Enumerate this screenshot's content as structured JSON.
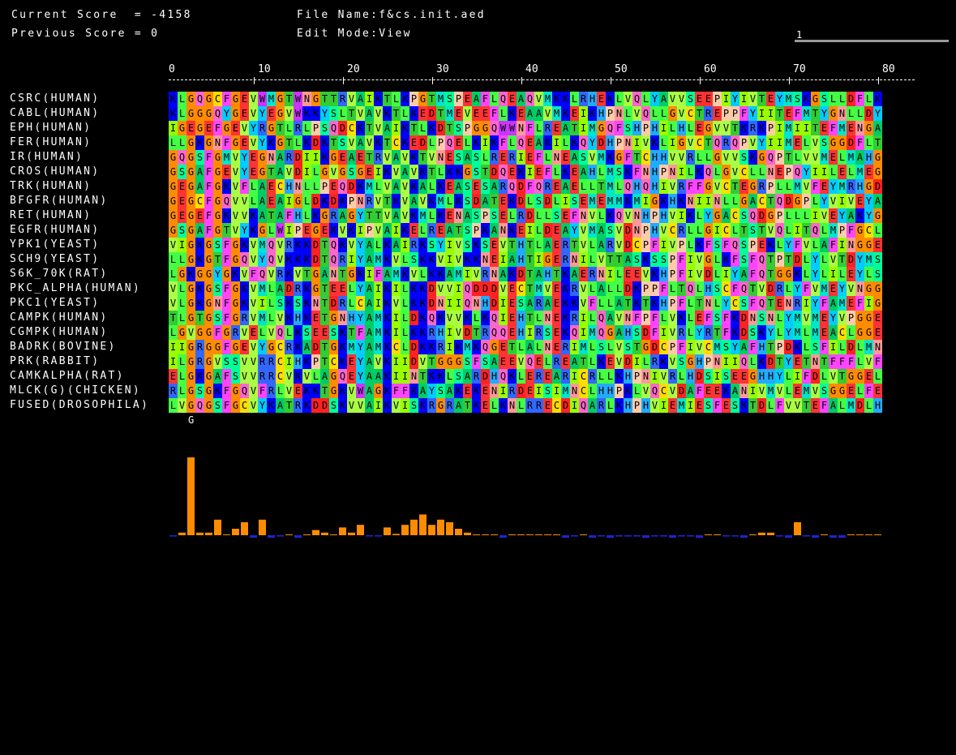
{
  "header": {
    "current_score_text": "Current Score  = -4158",
    "previous_score_text": "Previous Score = 0",
    "file_name_text": "File Name:f&cs.init.aed",
    "edit_mode_text": "Edit Mode:View",
    "position_indicator": "1"
  },
  "ruler": {
    "ticks": [
      "0",
      "10",
      "20",
      "30",
      "40",
      "50",
      "60",
      "70",
      "80"
    ]
  },
  "sequences": [
    {
      "name": "CSRC(HUMAN)",
      "seq": "KLGQGCFGEVWMGTWNGTTRVAIKTLKPGTMSPEAFLQEAQVMKKLRHEKLVQLYAVVSEEPIYIVTEYMSKGSLLDFLK"
    },
    {
      "name": "CABL(HUMAN)",
      "seq": "KLGGGQYGEVYEGVWKKYSLTVAVKTLKEDTMEVEEFLKEAAVMKEIKHPNLVQLLGVCTREPPFYIITEFMTYGNLLDY"
    },
    {
      "name": "EPH(HUMAN)",
      "seq": "IGEGEFGEVYRGTLRLPSQDCKTVAIKTLKDTSPGGQWWNFLREATIMGQFSHPHILHLEGVVTKRKPIMIITEFMENGA"
    },
    {
      "name": "FER(HUMAN)",
      "seq": "LLGKGNFGEVYKGTLKDKTSVAVKTCKEDLPQELKIKFLQEAKILKQYDHPNIVKLIGVCTQRQPVYIIMELVSGGDFLT"
    },
    {
      "name": "IR(HUMAN)",
      "seq": "GQGSFGMVYEGNARDIIKGEAETRVAVKTVNESASLRERIEFLNEASVMKGFTCHHVVRLLGVVSKGQPTLVVMELMAHG"
    },
    {
      "name": "CROS(HUMAN)",
      "seq": "GSGAFGEVYEGTAVDILGVGSGEIKVAVKTLKKGSTDQEKIEFLKEAHLMSKFNHPNILKQLGVCLLNEPQYIILELMEG"
    },
    {
      "name": "TRK(HUMAN)",
      "seq": "GEGAFGKVFLAECHNLLPEQDKMLVAVKALKEASESARQDFQREAELLTMLQHQHIVRFFGVCTEGRPLLMVFEYMRHGD"
    },
    {
      "name": "BFGFR(HUMAN)",
      "seq": "GEGCFGQVVLAEAIGLDKDKPNRVTKVAVKMLKSDATEKDLSDLISEMEMMKMIGKHKNIINLLGACTQDGPLYVIVEYA"
    },
    {
      "name": "RET(HUMAN)",
      "seq": "GEGEFGKVVKATAFHLKGRAGYTTVAVKMLKENASPSELRDLLSEFNVLKQVNHPHVIKLYGACSQDGPLLLIVEYAKYG"
    },
    {
      "name": "EGFR(HUMAN)",
      "seq": "GSGAFGTVYKGLWIPEGEKVKIPVAIKELREATSPKANKEILDEAYVMASVDNPHVCRLLGICLTSTVQLITQLMPFGCL"
    },
    {
      "name": "YPK1(YEAST)",
      "seq": "VIGKGSFGKVMQVRKKDTQKVYALKAIRKSYIVSKSEVTHTLAERTVLARVDCPFIVPLKFSFQSPEKLYFVLAFINGGE"
    },
    {
      "name": "SCH9(YEAST)",
      "seq": "LLGKGTFGQVYQVKKKDTQRIYAMKVLSKKVIVKKNEIAHTIGERNILVTTASKSSPFIVGLKFSFQTPTDLYLVTDYMS"
    },
    {
      "name": "S6K_70K(RAT)",
      "seq": "LGKGGYGKVFQVRKVTGANTGKIFAMKVLKKAMIVRNAKDTAHTKAERNILEEVKHPFIVDLIYAFQTGGKLYLILEYLS"
    },
    {
      "name": "PKC_ALPHA(HUMAN)",
      "seq": "VLGKGSFGKVMLADRKGTEELYAIKILKKDVVIQDDDVECTMVEKRVLALLDKPPFLTQLHSCFQTVDRLYFVMEYVNGG"
    },
    {
      "name": "PKC1(YEAST)",
      "seq": "VLGKGNFGKVILSKSKNTDRLCAIKVLKKDNIIQNHDIESARAEKKVFLLATKTKHPFLTNLYCSFQTENRIYFAMEFIG"
    },
    {
      "name": "CAMPK(HUMAN)",
      "seq": "TLGTGSFGRVMLVKHKETGNHYAMKILDKQKVVKLKQIEHTLNEKRILQAVNFPFLVKLEFSFKDNSNLYMVMEYVPGGE"
    },
    {
      "name": "CGMPK(HUMAN)",
      "seq": "LGVGGFGRVELVQLKSEESKTFAMKILKKRHIVDTRQQEHIRSEKQIMQGAHSDFIVRLYRTFKDSKYLYMLMEACLGGE"
    },
    {
      "name": "BADRK(BOVINE)",
      "seq": "IIGRGGFGEVYGCRKADTGKMYAMKCLDKKRIKMKQGETLALNERIMLSLVSTGDCPFIVCMSYAFHTPDKLSFILDLMN"
    },
    {
      "name": "PRK(RABBIT)",
      "seq": "ILGRGVSSVVRRCIHKPTCKEYAVKIIDVTGGGSFSAEEVQELREATLKEVDILRKVSGHPNIIQLKDTYETNTFFFLVF"
    },
    {
      "name": "CAMKALPHA(RAT)",
      "seq": "ELGKGAFSVVRRCVKVLAGQEYAAKIINTKKLSARDHQKLEREARICRLLKHPNIVRLHDSISEEGHHYLIFDLVTGGEL"
    },
    {
      "name": "MLCK(G)(CHICKEN)",
      "seq": "RLGSGKFGQVFRLVEKKTGKVWAGKFFKAYSAKEKENIRDEISIMNCLHHPKLVQCVDAFEEKANIVMVLEMVSGGELFE"
    },
    {
      "name": "FUSED(DROSOPHILA)",
      "seq": "LVGQGSFGCVYKATRKDDSKVVAIKVISKRGRATKELKNLRRECDIQARLKHPHVIEMIESFESKTDLFVVTEFALMDLH"
    }
  ],
  "consensus": [
    {
      "col": 2,
      "char": "G"
    }
  ],
  "conservation_scores": [
    -1,
    2,
    60,
    2,
    2,
    12,
    0,
    5,
    10,
    -2,
    12,
    -2,
    -1,
    0,
    -2,
    0,
    4,
    2,
    0,
    6,
    2,
    8,
    -1,
    -1,
    6,
    1,
    8,
    12,
    16,
    8,
    12,
    10,
    5,
    2,
    0,
    0,
    0,
    -2,
    0,
    0,
    0,
    0,
    0,
    0,
    -2,
    -1,
    0,
    -2,
    -1,
    -2,
    -1,
    -1,
    -1,
    -2,
    -1,
    -1,
    -2,
    -1,
    -1,
    -2,
    0,
    0,
    -1,
    -1,
    -2,
    0,
    2,
    2,
    -1,
    -2,
    10,
    -1,
    -2,
    0,
    -2,
    -2,
    0,
    0,
    0,
    0
  ],
  "colors": {
    "background": "#000000",
    "bar_positive": "#ff8c00",
    "bar_negative": "#2222cc",
    "residues": {
      "A": "#00cc66",
      "C": "#ffdd00",
      "D": "#ff2222",
      "E": "#ff3333",
      "F": "#ff44ff",
      "G": "#ff8c00",
      "H": "#22aaff",
      "I": "#99ff00",
      "K": "#0000ff",
      "L": "#44ff44",
      "M": "#00e5cc",
      "N": "#ff9999",
      "P": "#ffccaa",
      "Q": "#ff66cc",
      "R": "#3366ff",
      "S": "#00ff99",
      "T": "#33cc33",
      "V": "#aaff44",
      "W": "#cc33ff",
      "Y": "#00ccff"
    }
  }
}
